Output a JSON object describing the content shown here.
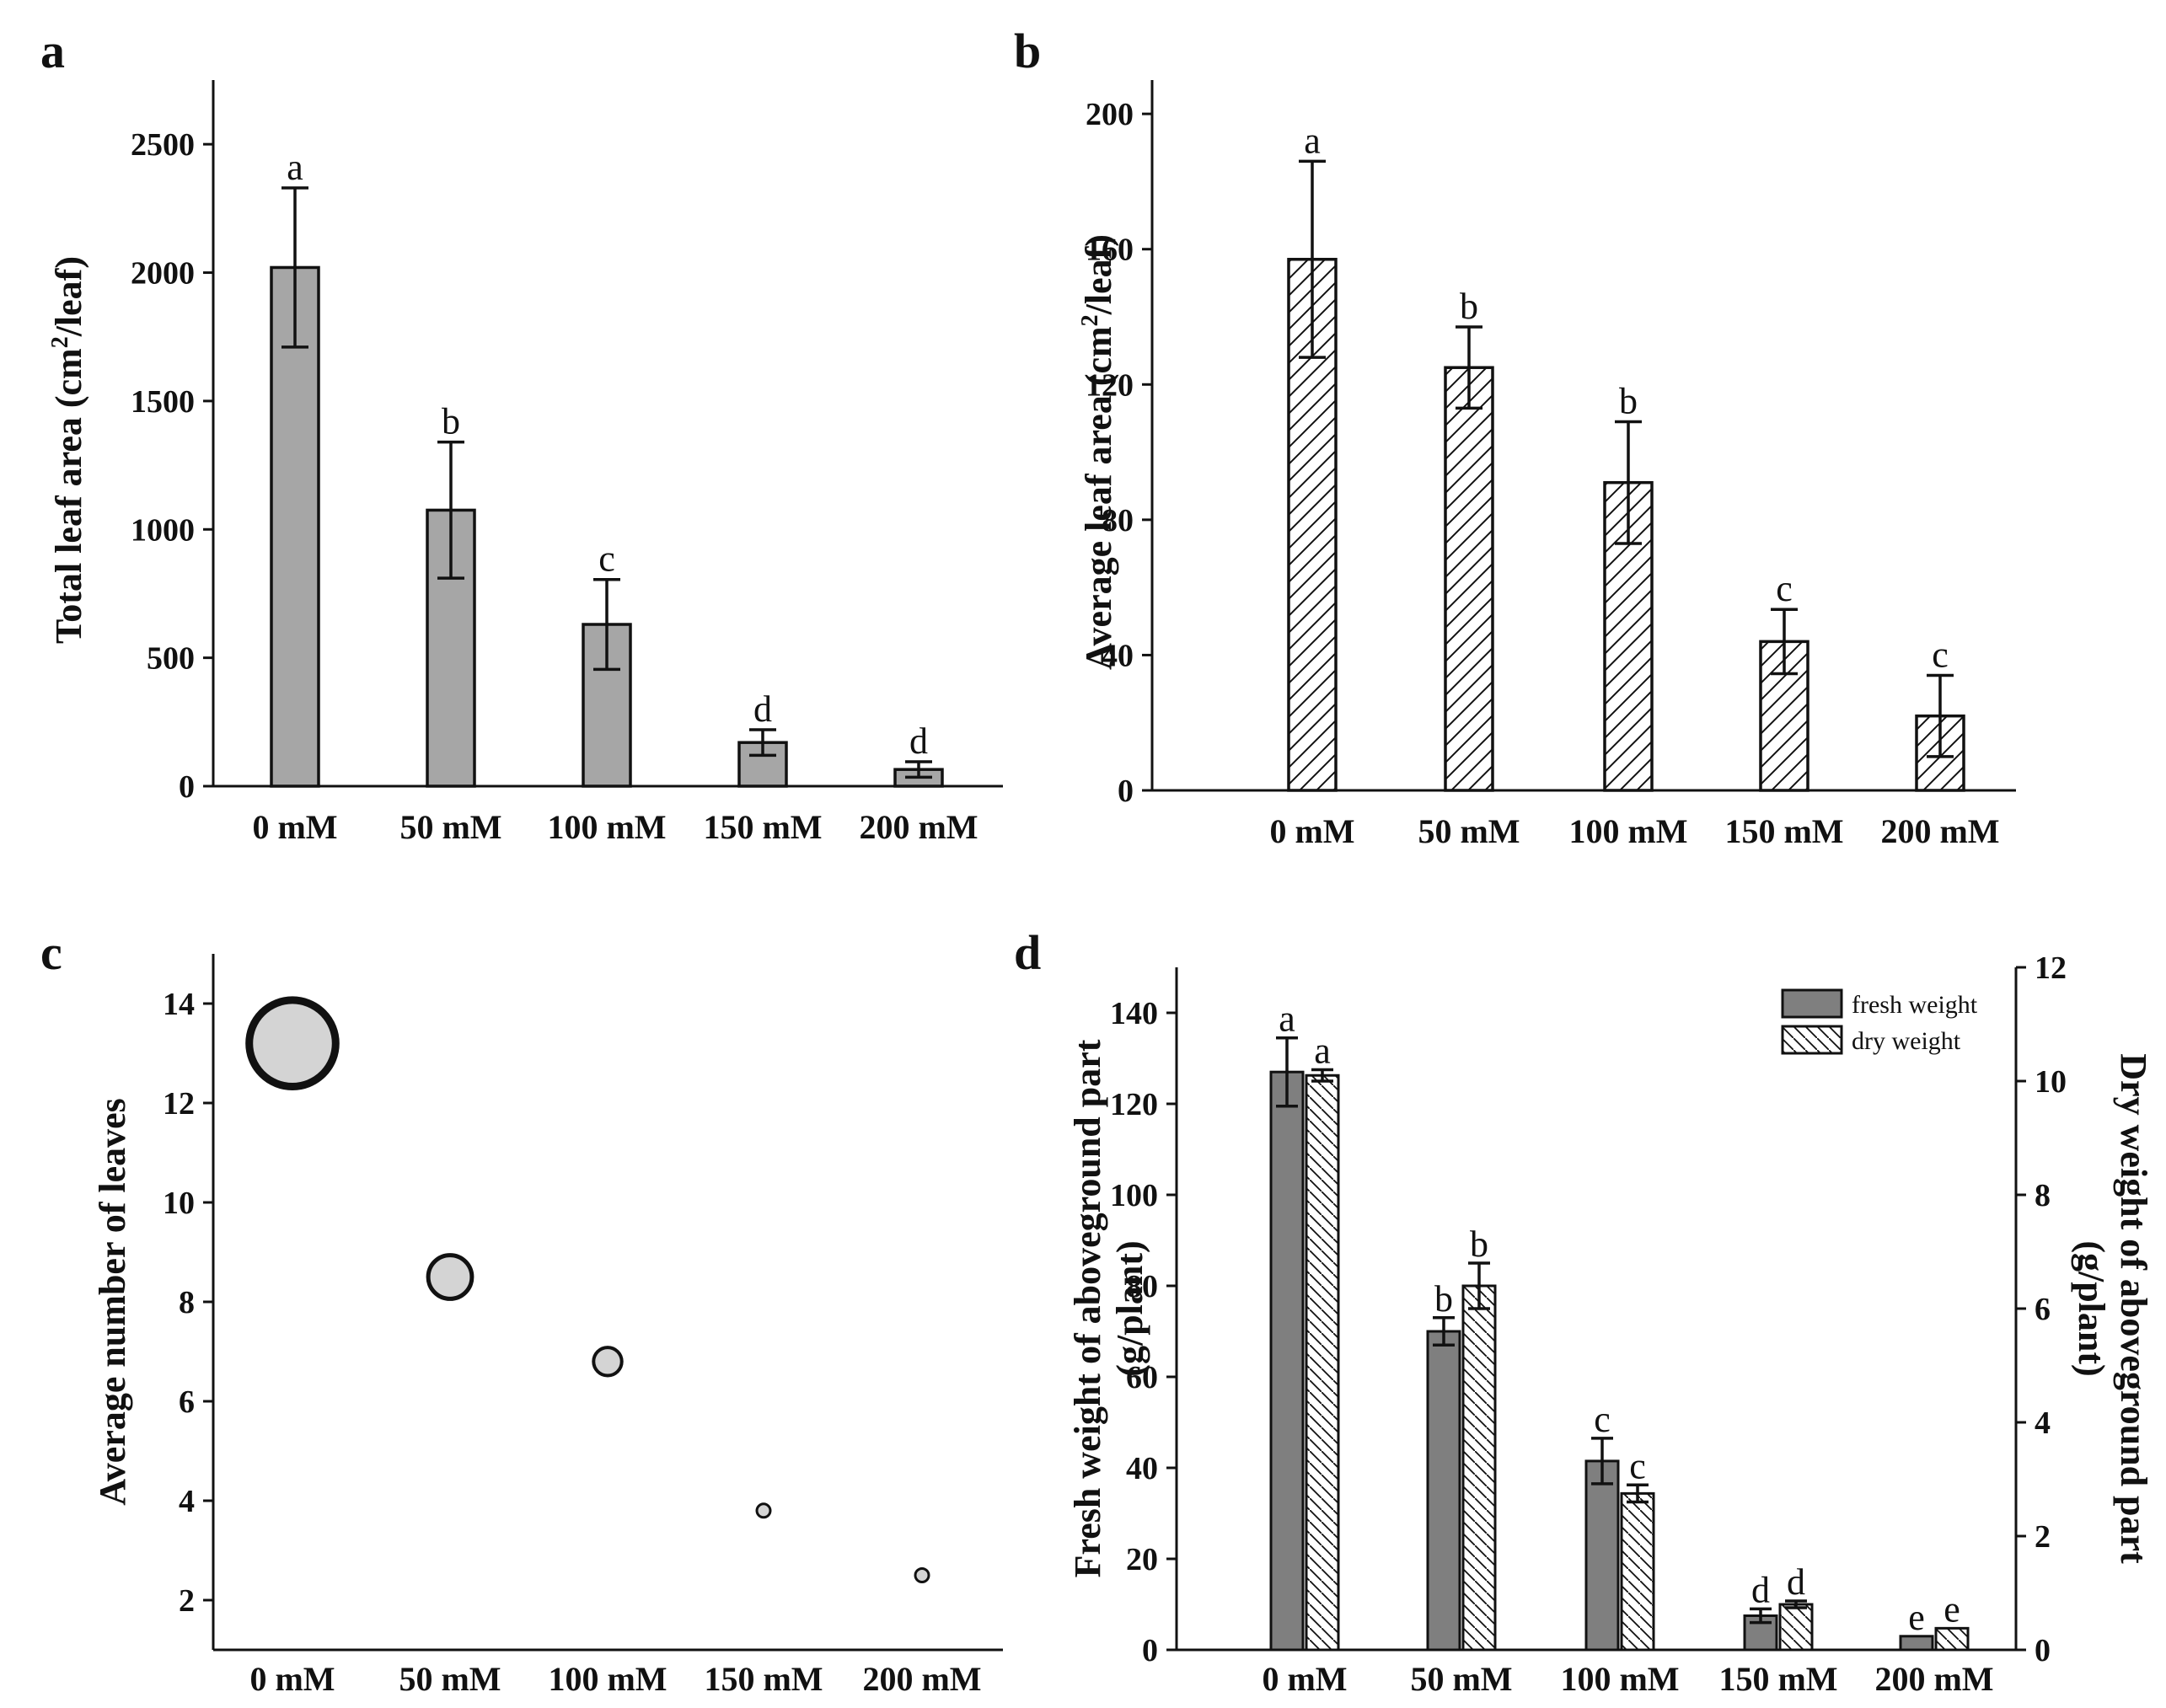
{
  "chart_data": [
    {
      "panel": "a",
      "type": "bar",
      "categories": [
        "0 mM",
        "50 mM",
        "100 mM",
        "150 mM",
        "200 mM"
      ],
      "values": [
        2020,
        1075,
        630,
        170,
        65
      ],
      "errors": [
        310,
        265,
        175,
        50,
        30
      ],
      "letters": [
        "a",
        "b",
        "c",
        "d",
        "d"
      ],
      "ylabel": "Total leaf area (cm²/leaf)",
      "yticks": [
        "0",
        "500",
        "1000",
        "1500",
        "2000",
        "2500"
      ],
      "ylim": [
        0,
        2750
      ],
      "fill": "#a6a6a6"
    },
    {
      "panel": "b",
      "type": "bar",
      "categories": [
        "0 mM",
        "50 mM",
        "100 mM",
        "150 mM",
        "200 mM"
      ],
      "values": [
        157,
        125,
        91,
        44,
        22
      ],
      "errors": [
        29,
        12,
        18,
        9.5,
        12
      ],
      "letters": [
        "a",
        "b",
        "b",
        "c",
        "c"
      ],
      "ylabel": "Average leaf area (cm²/leaf)",
      "yticks": [
        "0",
        "40",
        "80",
        "120",
        "160",
        "200"
      ],
      "ylim": [
        0,
        210
      ],
      "pattern": "hatched"
    },
    {
      "panel": "c",
      "type": "scatter",
      "categories": [
        "0 mM",
        "50 mM",
        "100 mM",
        "150 mM",
        "200 mM"
      ],
      "values": [
        13.2,
        8.5,
        6.8,
        3.8,
        2.5
      ],
      "ylabel": "Average number of leaves",
      "yticks": [
        "2",
        "4",
        "6",
        "8",
        "10",
        "12",
        "14"
      ],
      "ylim": [
        1,
        15
      ],
      "fill": "#d4d4d4"
    },
    {
      "panel": "d",
      "type": "bar",
      "categories": [
        "0 mM",
        "50 mM",
        "100 mM",
        "150 mM",
        "200 mM"
      ],
      "series": [
        {
          "name": "fresh weight",
          "axis": "left",
          "values": [
            127,
            70,
            41.5,
            7.5,
            3
          ],
          "errors": [
            7.5,
            3,
            5,
            1.5,
            0
          ],
          "letters": [
            "a",
            "b",
            "c",
            "d",
            "e"
          ],
          "fill": "#7f7f7f"
        },
        {
          "name": "dry weight",
          "axis": "right",
          "values": [
            10.1,
            6.4,
            2.75,
            0.8,
            0.38
          ],
          "errors": [
            0.1,
            0.4,
            0.15,
            0.06,
            0
          ],
          "letters": [
            "a",
            "b",
            "c",
            "d",
            "e"
          ],
          "pattern": "hatched"
        }
      ],
      "ylabel": "Fresh weight of aboveground part (g/plant)",
      "ylabel_lines": [
        "Fresh weight of aboveground part",
        "(g/plant)"
      ],
      "y2label": "Dry weight of aboveground part (g/plant)",
      "y2label_lines": [
        "Dry weight of aboveground part",
        "(g/plant)"
      ],
      "yticks": [
        "0",
        "20",
        "40",
        "60",
        "80",
        "100",
        "120",
        "140"
      ],
      "ylim": [
        0,
        150
      ],
      "y2ticks": [
        "0",
        "2",
        "4",
        "6",
        "8",
        "10",
        "12"
      ],
      "y2lim": [
        0,
        12
      ],
      "legend": [
        "fresh weight",
        "dry weight"
      ],
      "legend_position": "top-right"
    }
  ]
}
